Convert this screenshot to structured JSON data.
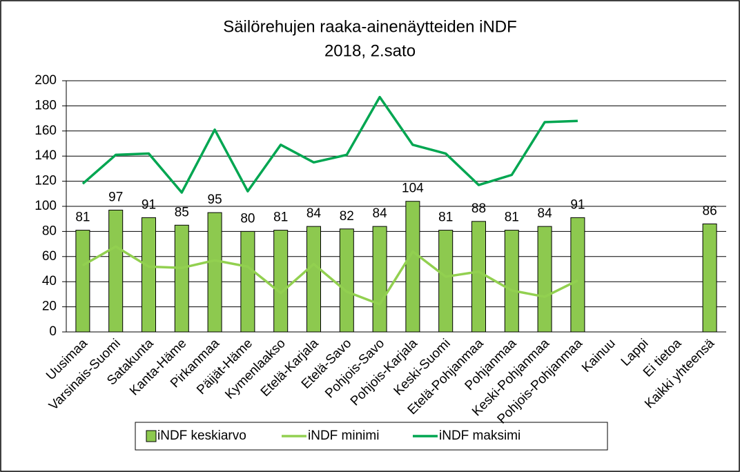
{
  "chart_data": {
    "type": "bar",
    "title": "Säilörehujen raaka-ainenäytteiden iNDF",
    "subtitle": "2018, 2.sato",
    "categories": [
      "Uusimaa",
      "Varsinais-Suomi",
      "Satakunta",
      "Kanta-Häme",
      "Pirkanmaa",
      "Päijät-Häme",
      "Kymenlaakso",
      "Etelä-Karjala",
      "Etelä-Savo",
      "Pohjois-Savo",
      "Pohjois-Karjala",
      "Keski-Suomi",
      "Etelä-Pohjanmaa",
      "Pohjanmaa",
      "Keski-Pohjanmaa",
      "Pohjois-Pohjanmaa",
      "Kainuu",
      "Lappi",
      "Ei tietoa",
      "Kaikki yhteensä"
    ],
    "series": [
      {
        "name": "iNDF keskiarvo",
        "type": "bar",
        "color": "#8dc94f",
        "values": [
          81,
          97,
          91,
          85,
          95,
          80,
          81,
          84,
          82,
          84,
          104,
          81,
          88,
          81,
          84,
          91,
          null,
          null,
          null,
          86
        ]
      },
      {
        "name": "iNDF minimi",
        "type": "line",
        "color": "#92d050",
        "values": [
          53,
          68,
          52,
          51,
          57,
          52,
          31,
          54,
          32,
          22,
          64,
          44,
          48,
          33,
          28,
          41,
          null,
          null,
          null,
          null
        ]
      },
      {
        "name": "iNDF maksimi",
        "type": "line",
        "color": "#00a651",
        "values": [
          118,
          141,
          142,
          111,
          161,
          112,
          149,
          135,
          141,
          187,
          149,
          142,
          117,
          125,
          167,
          168,
          null,
          null,
          null,
          null
        ]
      }
    ],
    "ylim": [
      0,
      200
    ],
    "yticks": [
      0,
      20,
      40,
      60,
      80,
      100,
      120,
      140,
      160,
      180,
      200
    ],
    "grid": true,
    "legend": "bottom"
  }
}
